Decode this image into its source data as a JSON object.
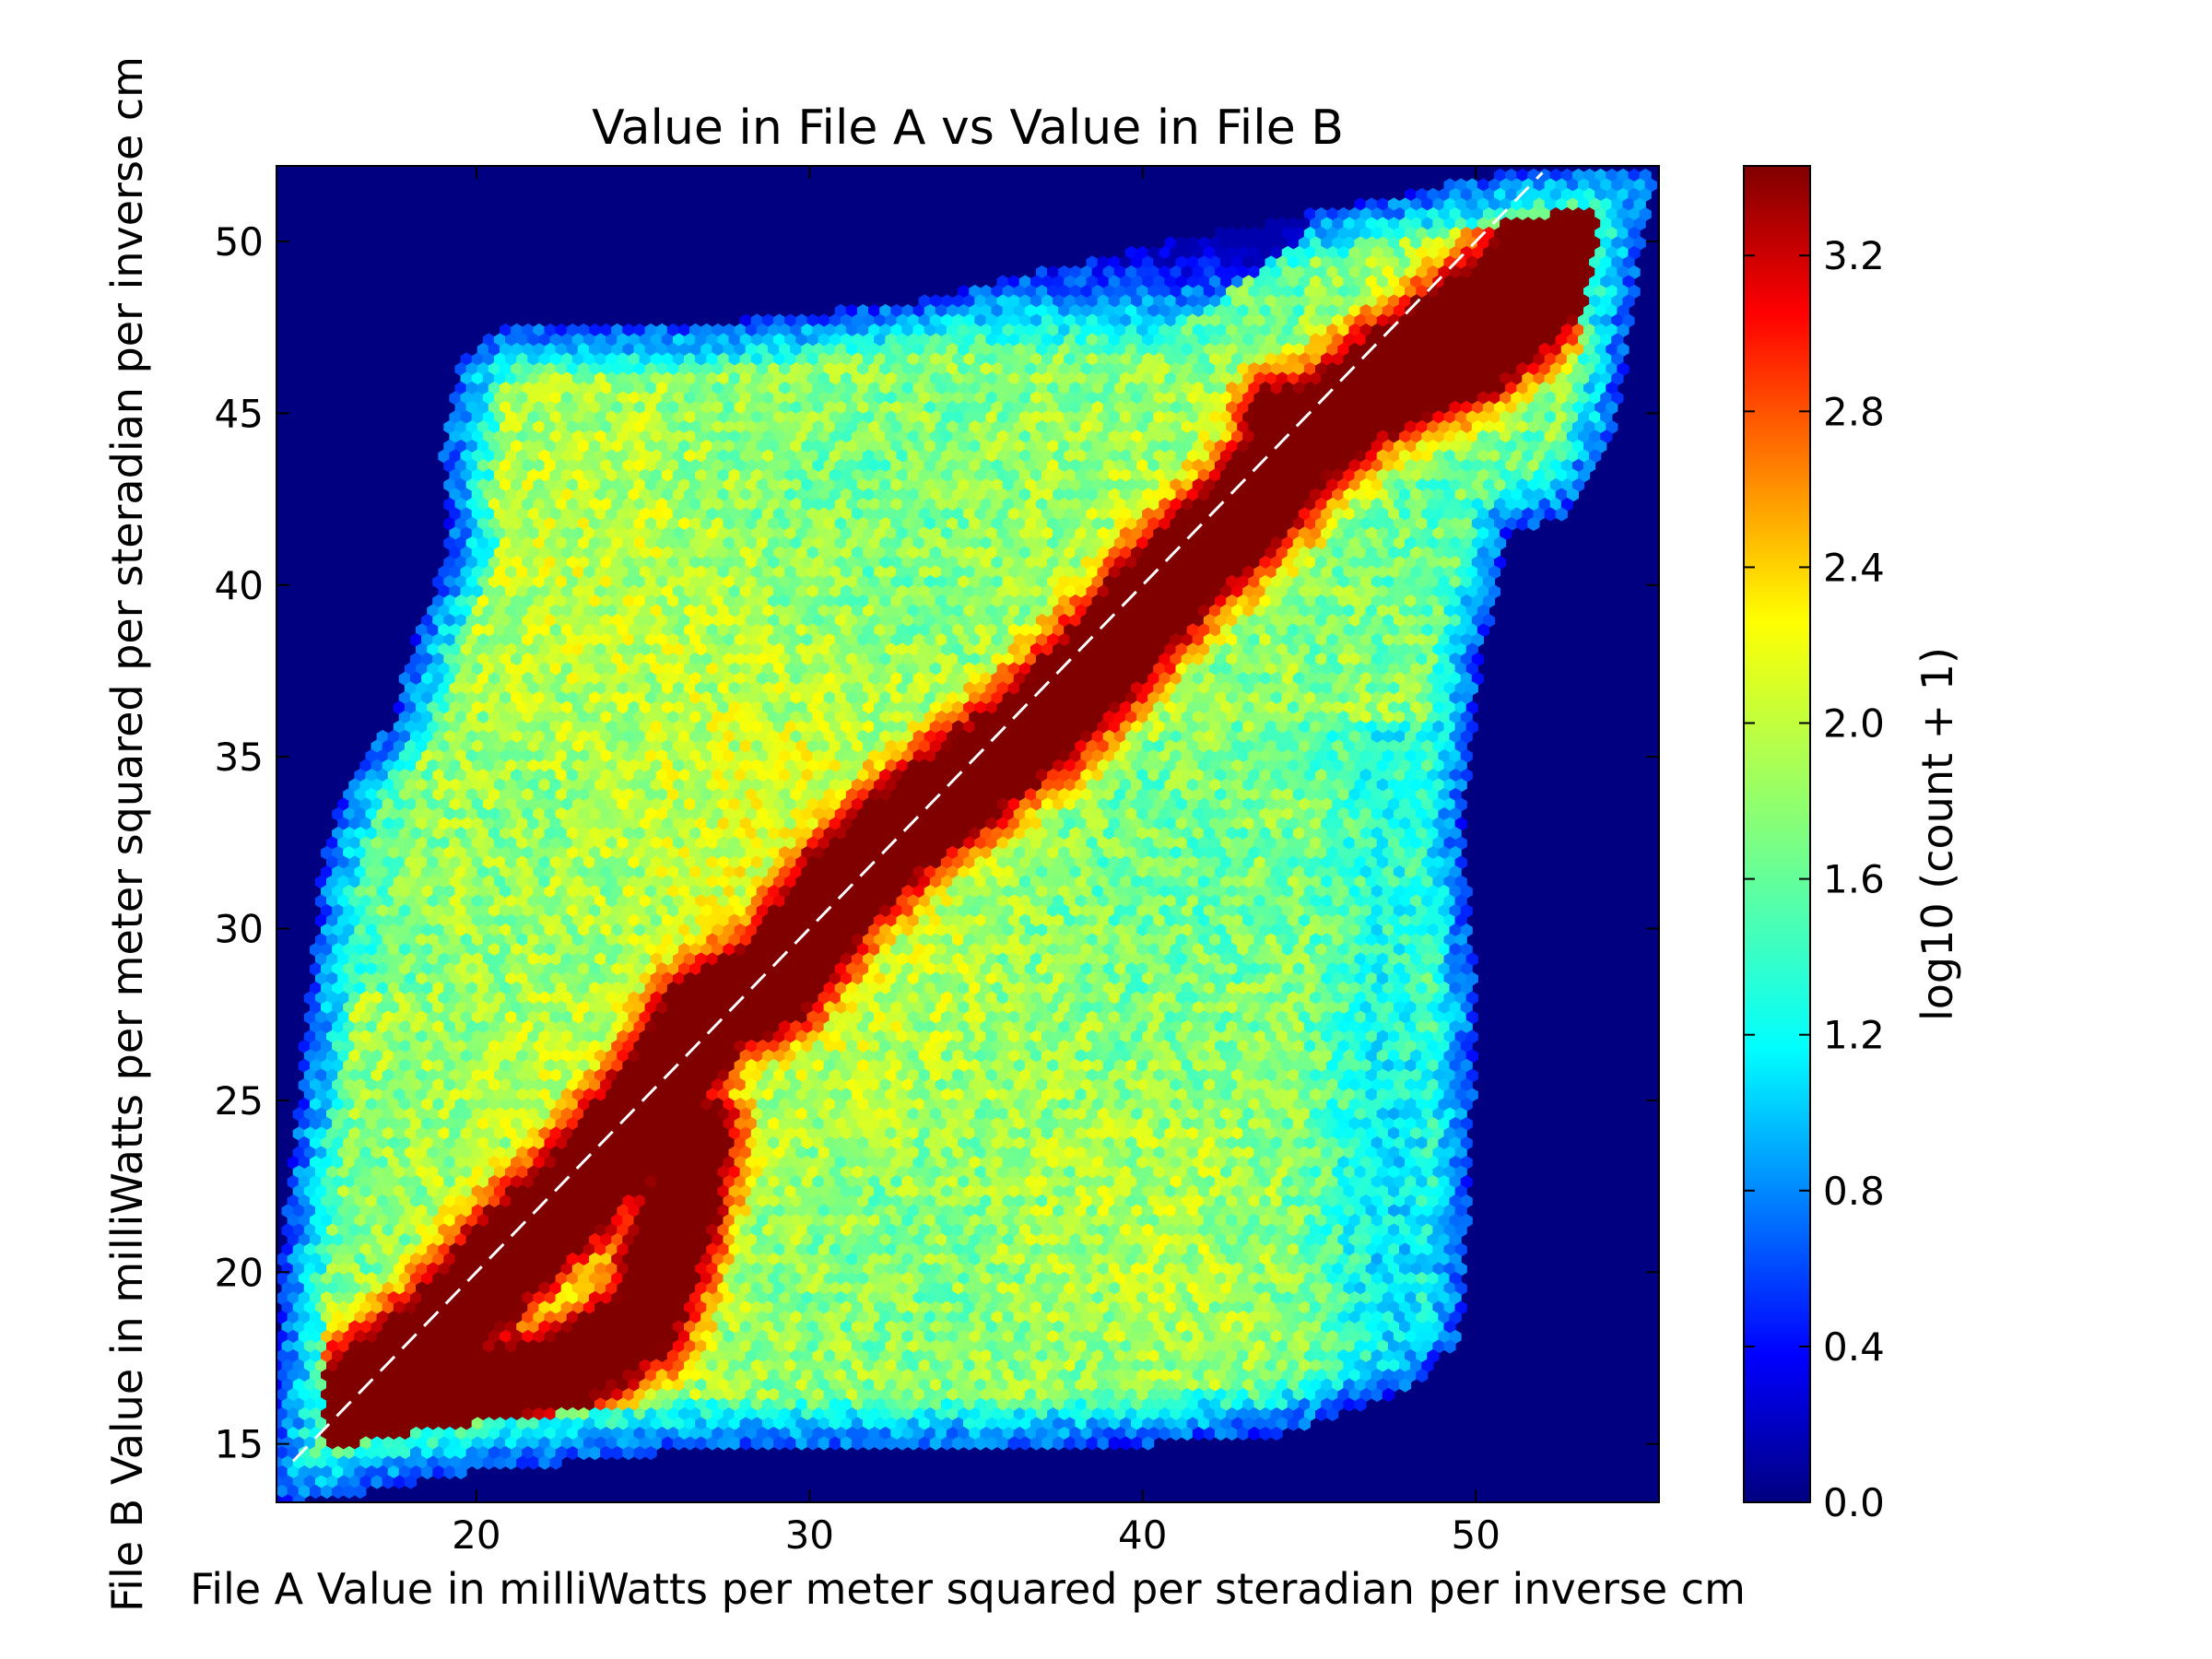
{
  "chart_data": {
    "type": "heatmap",
    "subtype": "hexbin",
    "title": "Value in File A vs Value in File B",
    "xlabel": "File A Value in milliWatts per meter squared per steradian per inverse cm",
    "ylabel": "File B Value in milliWatts per meter squared per steradian per inverse cm",
    "xlim": [
      14,
      55.5
    ],
    "ylim": [
      13.3,
      52.2
    ],
    "x_ticks": [
      20,
      30,
      40,
      50
    ],
    "y_ticks": [
      15,
      20,
      25,
      30,
      35,
      40,
      45,
      50
    ],
    "x_tick_labels": [
      "20",
      "30",
      "40",
      "50"
    ],
    "y_tick_labels": [
      "15",
      "20",
      "25",
      "30",
      "35",
      "40",
      "45",
      "50"
    ],
    "colorbar": {
      "label": "log10 (count + 1)",
      "range": [
        0.0,
        3.43
      ],
      "ticks": [
        0.0,
        0.4,
        0.8,
        1.2,
        1.6,
        2.0,
        2.4,
        2.8,
        3.2
      ],
      "tick_labels": [
        "0.0",
        "0.4",
        "0.8",
        "1.2",
        "1.6",
        "2.0",
        "2.4",
        "2.8",
        "3.2"
      ],
      "colormap": "jet"
    },
    "reference_line": {
      "style": "dashed",
      "color": "#ffffff",
      "from": [
        14.5,
        14.5
      ],
      "to": [
        52,
        52
      ]
    },
    "data_region": {
      "description_free_polygon": [
        [
          14,
          13.3
        ],
        [
          14.8,
          13.3
        ],
        [
          20,
          14.2
        ],
        [
          26,
          14.8
        ],
        [
          36,
          14.8
        ],
        [
          44,
          15.2
        ],
        [
          48,
          16.6
        ],
        [
          49.5,
          18
        ],
        [
          49.8,
          22
        ],
        [
          50,
          28
        ],
        [
          49.6,
          33
        ],
        [
          50.2,
          38
        ],
        [
          51,
          41.5
        ],
        [
          53,
          42.2
        ],
        [
          54.2,
          44.5
        ],
        [
          54.6,
          47.5
        ],
        [
          55.4,
          52.2
        ],
        [
          52,
          52.2
        ],
        [
          46,
          51
        ],
        [
          40,
          49.8
        ],
        [
          33,
          48.2
        ],
        [
          27,
          47.6
        ],
        [
          21,
          47.6
        ],
        [
          19.5,
          46.5
        ],
        [
          19,
          44
        ],
        [
          19.2,
          41
        ],
        [
          18.2,
          38.5
        ],
        [
          17.5,
          36
        ],
        [
          16.2,
          34.5
        ],
        [
          15.4,
          32
        ],
        [
          15,
          28
        ],
        [
          14.2,
          21
        ],
        [
          14,
          18
        ]
      ]
    },
    "density_ridges": [
      {
        "points": [
          [
            15,
            15.3
          ],
          [
            17,
            16.8
          ],
          [
            19,
            18.2
          ],
          [
            21,
            20.5
          ],
          [
            23,
            22.3
          ],
          [
            25,
            24.5
          ],
          [
            27,
            27.5
          ],
          [
            29,
            28.5
          ],
          [
            31,
            31.2
          ],
          [
            33,
            33
          ],
          [
            35,
            34.5
          ],
          [
            37,
            36
          ],
          [
            39,
            38
          ],
          [
            41,
            40.3
          ],
          [
            43,
            42
          ],
          [
            45,
            44.3
          ],
          [
            47,
            45.8
          ],
          [
            49,
            47.2
          ],
          [
            51,
            48.6
          ],
          [
            52.5,
            50.5
          ]
        ],
        "peak": 3.3,
        "width": 1.6
      },
      {
        "points": [
          [
            16,
            15.8
          ],
          [
            20,
            16.6
          ],
          [
            23,
            17.2
          ],
          [
            25,
            18.5
          ],
          [
            26,
            21.5
          ],
          [
            26.5,
            24
          ]
        ],
        "peak": 3.0,
        "width": 1.5
      },
      {
        "points": [
          [
            44,
            44.8
          ],
          [
            47,
            45.2
          ],
          [
            50,
            46.4
          ],
          [
            52,
            48
          ],
          [
            53.5,
            49.5
          ]
        ],
        "peak": 2.9,
        "width": 1.3
      }
    ]
  }
}
